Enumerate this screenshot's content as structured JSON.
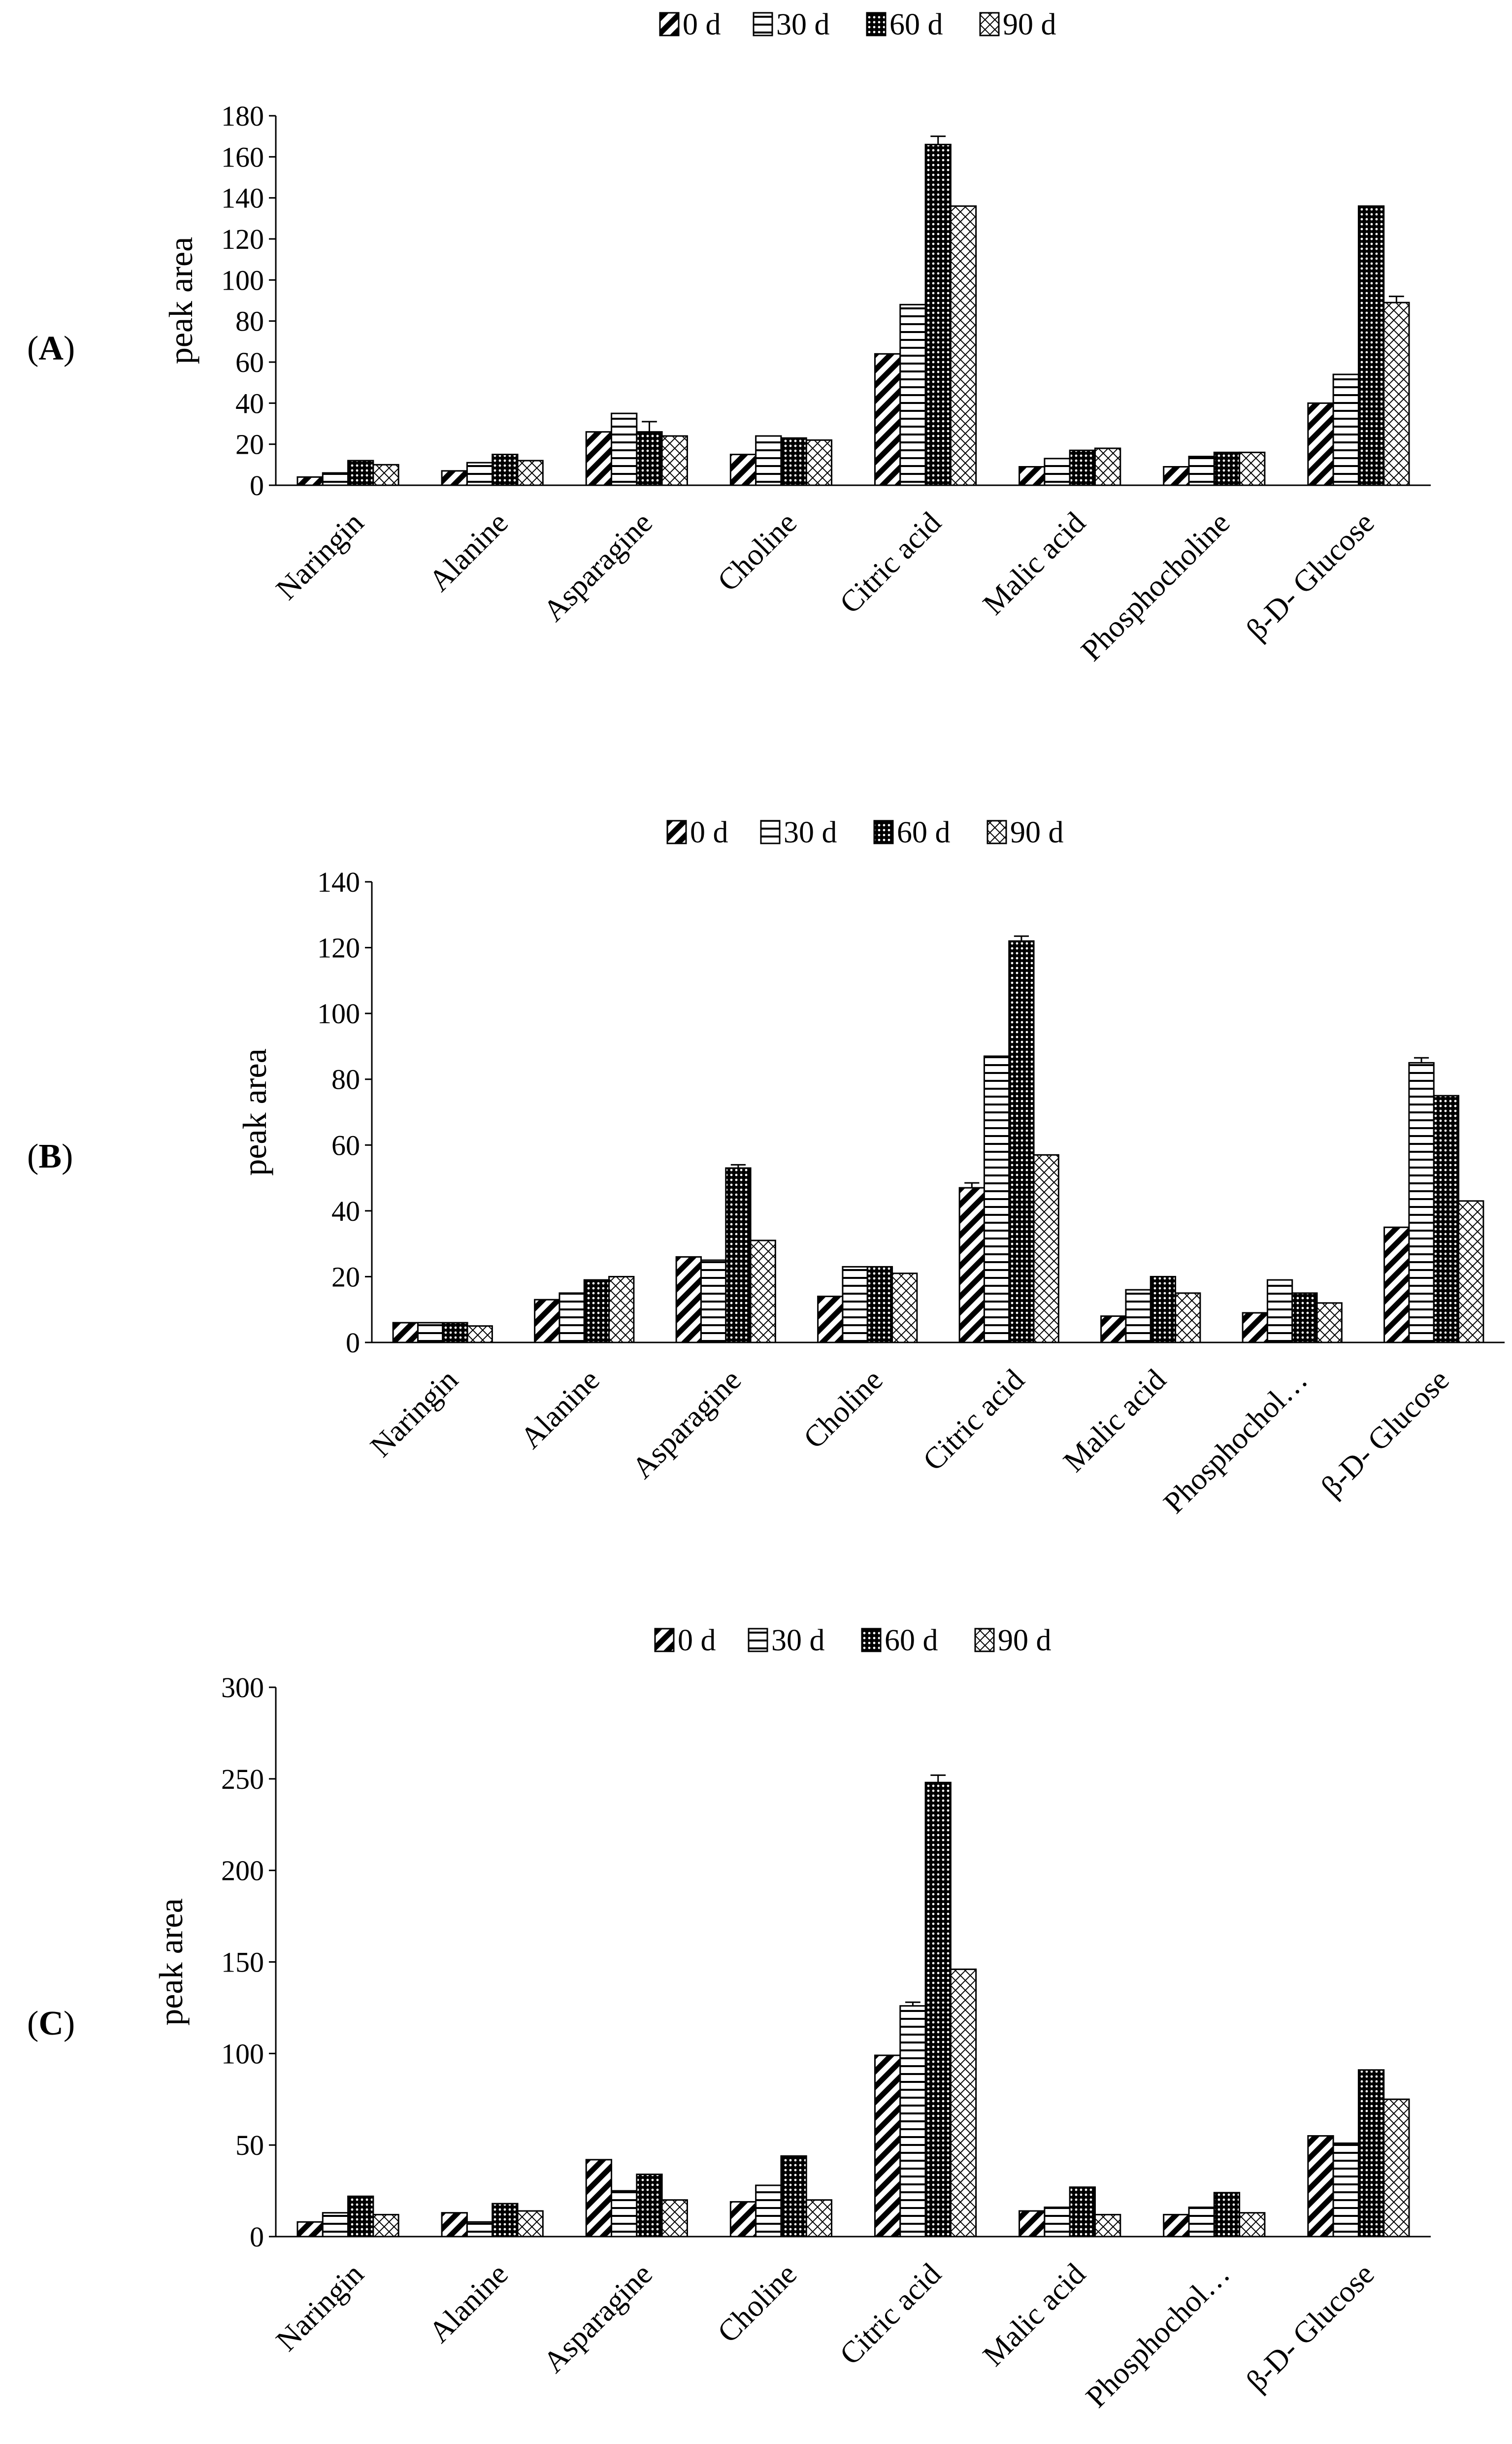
{
  "chart_data": [
    {
      "panel_label_open": "(",
      "panel_label_letter": "A",
      "panel_label_close": ")",
      "type": "bar",
      "ylabel": "peak area",
      "ylim": [
        0,
        180
      ],
      "yticks": [
        0,
        20,
        40,
        60,
        80,
        100,
        120,
        140,
        160,
        180
      ],
      "categories": [
        "Naringin",
        "Alanine",
        "Asparagine",
        "Choline",
        "Citric acid",
        "Malic acid",
        "Phosphocholine",
        "β-D- Glucose"
      ],
      "series": [
        {
          "name": "0 d",
          "pattern": "diag",
          "values": [
            4,
            7,
            26,
            15,
            64,
            9,
            9,
            40
          ],
          "errors": [
            0,
            0,
            0,
            0,
            0,
            0,
            0,
            0
          ]
        },
        {
          "name": "30 d",
          "pattern": "horiz",
          "values": [
            6,
            11,
            35,
            24,
            88,
            13,
            14,
            54
          ],
          "errors": [
            0,
            0,
            0,
            0,
            0,
            0,
            0,
            0
          ]
        },
        {
          "name": "60 d",
          "pattern": "dense",
          "values": [
            12,
            15,
            26,
            23,
            166,
            17,
            16,
            136
          ],
          "errors": [
            0,
            0,
            5,
            0,
            4,
            0,
            0,
            0
          ]
        },
        {
          "name": "90 d",
          "pattern": "cross",
          "values": [
            10,
            12,
            24,
            22,
            136,
            18,
            16,
            89
          ],
          "errors": [
            0,
            0,
            0,
            0,
            0,
            0,
            0,
            3
          ]
        }
      ]
    },
    {
      "panel_label_open": "(",
      "panel_label_letter": "B",
      "panel_label_close": ")",
      "type": "bar",
      "ylabel": "peak area",
      "ylim": [
        0,
        140
      ],
      "yticks": [
        0,
        20,
        40,
        60,
        80,
        100,
        120,
        140
      ],
      "categories": [
        "Naringin",
        "Alanine",
        "Asparagine",
        "Choline",
        "Citric acid",
        "Malic acid",
        "Phosphochol…",
        "β-D- Glucose"
      ],
      "series": [
        {
          "name": "0 d",
          "pattern": "diag",
          "values": [
            6,
            13,
            26,
            14,
            47,
            8,
            9,
            35
          ],
          "errors": [
            0,
            0,
            0,
            0,
            1.5,
            0,
            0,
            0
          ]
        },
        {
          "name": "30 d",
          "pattern": "horiz",
          "values": [
            6,
            15,
            25,
            23,
            87,
            16,
            19,
            85
          ],
          "errors": [
            0,
            0,
            0,
            0,
            0,
            0,
            0,
            1.5
          ]
        },
        {
          "name": "60 d",
          "pattern": "dense",
          "values": [
            6,
            19,
            53,
            23,
            122,
            20,
            15,
            75
          ],
          "errors": [
            0,
            0,
            1,
            0,
            1.5,
            0,
            0,
            0
          ]
        },
        {
          "name": "90 d",
          "pattern": "cross",
          "values": [
            5,
            20,
            31,
            21,
            57,
            15,
            12,
            43
          ],
          "errors": [
            0,
            0,
            0,
            0,
            0,
            0,
            0,
            0
          ]
        }
      ]
    },
    {
      "panel_label_open": "(",
      "panel_label_letter": "C",
      "panel_label_close": ")",
      "type": "bar",
      "ylabel": "peak area",
      "ylim": [
        0,
        300
      ],
      "yticks": [
        0,
        50,
        100,
        150,
        200,
        250,
        300
      ],
      "categories": [
        "Naringin",
        "Alanine",
        "Asparagine",
        "Choline",
        "Citric acid",
        "Malic acid",
        "Phosphochol…",
        "β-D- Glucose"
      ],
      "series": [
        {
          "name": "0 d",
          "pattern": "diag",
          "values": [
            8,
            13,
            42,
            19,
            99,
            14,
            12,
            55
          ],
          "errors": [
            0,
            0,
            0,
            0,
            0,
            0,
            0,
            0
          ]
        },
        {
          "name": "30 d",
          "pattern": "horiz",
          "values": [
            13,
            8,
            25,
            28,
            126,
            16,
            16,
            51
          ],
          "errors": [
            0,
            0,
            0,
            0,
            2,
            0,
            0,
            0
          ]
        },
        {
          "name": "60 d",
          "pattern": "dense",
          "values": [
            22,
            18,
            34,
            44,
            248,
            27,
            24,
            91
          ],
          "errors": [
            0,
            0,
            0,
            0,
            4,
            0,
            0,
            0
          ]
        },
        {
          "name": "90 d",
          "pattern": "cross",
          "values": [
            12,
            14,
            20,
            20,
            146,
            12,
            13,
            75
          ],
          "errors": [
            0,
            0,
            0,
            0,
            0,
            0,
            0,
            0
          ]
        }
      ]
    }
  ]
}
